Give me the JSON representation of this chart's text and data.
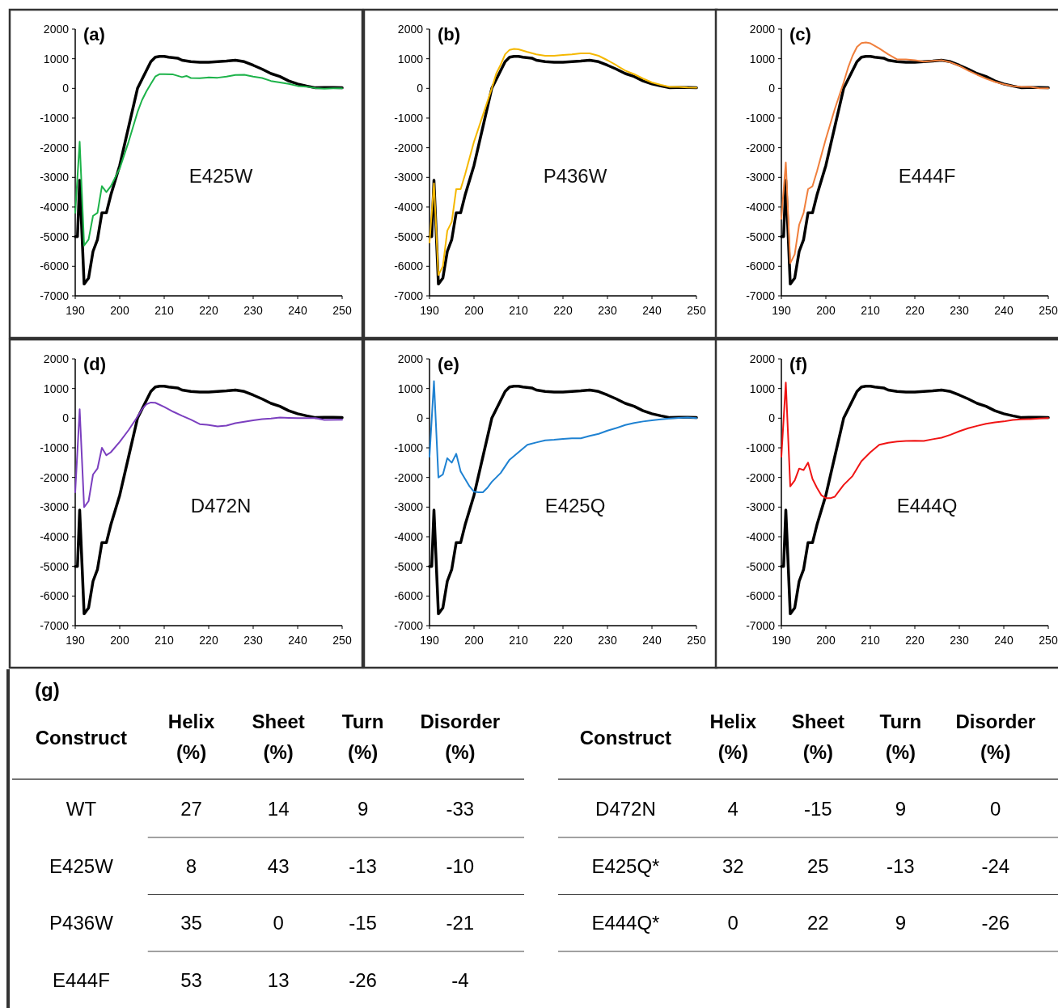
{
  "chart_data": [
    {
      "type": "line",
      "title": "(a)",
      "xlim": [
        190,
        250
      ],
      "ylim": [
        -7000,
        2000
      ],
      "xticks": [
        190,
        200,
        210,
        220,
        230,
        240,
        250
      ],
      "yticks": [
        2000,
        1000,
        0,
        -1000,
        -2000,
        -3000,
        -4000,
        -5000,
        -6000,
        -7000
      ],
      "series": [
        {
          "color": "#000000",
          "x": [
            190,
            190.5,
            191,
            192,
            193,
            194,
            195,
            196,
            197,
            198,
            200,
            202,
            204,
            205,
            206,
            207,
            208,
            209,
            210,
            211,
            213,
            214,
            216,
            218,
            220,
            222,
            224,
            226,
            228,
            230,
            232,
            234,
            236,
            238,
            240,
            242,
            244,
            246,
            248,
            250
          ],
          "values": [
            -5000,
            -5000,
            -3100,
            -6600,
            -6400,
            -5500,
            -5100,
            -4200,
            -4200,
            -3600,
            -2600,
            -1300,
            0,
            300,
            600,
            900,
            1050,
            1080,
            1080,
            1050,
            1020,
            950,
            900,
            880,
            880,
            900,
            920,
            950,
            900,
            780,
            650,
            500,
            400,
            250,
            150,
            80,
            20,
            30,
            30,
            20
          ]
        },
        {
          "name": "E425W",
          "color": "#1db34a",
          "x": [
            190,
            191,
            192,
            193,
            194,
            195,
            196,
            197,
            198,
            200,
            202,
            204,
            205,
            206,
            207,
            208,
            209,
            210,
            212,
            214,
            215,
            216,
            218,
            220,
            222,
            224,
            226,
            228,
            230,
            232,
            234,
            236,
            238,
            240,
            242,
            244,
            246,
            248,
            250
          ],
          "values": [
            -4200,
            -1800,
            -5300,
            -5100,
            -4300,
            -4200,
            -3300,
            -3500,
            -3300,
            -2700,
            -1800,
            -800,
            -400,
            -100,
            150,
            400,
            480,
            480,
            470,
            380,
            420,
            350,
            340,
            370,
            360,
            400,
            450,
            460,
            400,
            350,
            250,
            200,
            150,
            80,
            60,
            10,
            -10,
            0,
            0
          ]
        }
      ]
    },
    {
      "type": "line",
      "title": "(b)",
      "xlim": [
        190,
        250
      ],
      "ylim": [
        -7000,
        2000
      ],
      "xticks": [
        190,
        200,
        210,
        220,
        230,
        240,
        250
      ],
      "yticks": [
        2000,
        1000,
        0,
        -1000,
        -2000,
        -3000,
        -4000,
        -5000,
        -6000,
        -7000
      ],
      "series": [
        {
          "color": "#000000",
          "x": [
            190,
            190.5,
            191,
            192,
            193,
            194,
            195,
            196,
            197,
            198,
            200,
            202,
            204,
            205,
            206,
            207,
            208,
            209,
            210,
            211,
            213,
            214,
            216,
            218,
            220,
            222,
            224,
            226,
            228,
            230,
            232,
            234,
            236,
            238,
            240,
            242,
            244,
            246,
            248,
            250
          ],
          "values": [
            -5000,
            -5000,
            -3100,
            -6600,
            -6400,
            -5500,
            -5100,
            -4200,
            -4200,
            -3600,
            -2600,
            -1300,
            0,
            300,
            600,
            900,
            1050,
            1080,
            1080,
            1050,
            1020,
            950,
            900,
            880,
            880,
            900,
            920,
            950,
            900,
            780,
            650,
            500,
            400,
            250,
            150,
            80,
            20,
            30,
            30,
            20
          ]
        },
        {
          "name": "P436W",
          "color": "#f5b800",
          "x": [
            190,
            191,
            192,
            193,
            194,
            195,
            196,
            197,
            198,
            200,
            202,
            204,
            205,
            206,
            207,
            208,
            209,
            210,
            212,
            214,
            216,
            218,
            220,
            222,
            224,
            226,
            228,
            230,
            232,
            234,
            236,
            238,
            240,
            242,
            244,
            246,
            248,
            250
          ],
          "values": [
            -5200,
            -3200,
            -6300,
            -6000,
            -4800,
            -4500,
            -3400,
            -3400,
            -2900,
            -1800,
            -900,
            0,
            500,
            800,
            1150,
            1300,
            1330,
            1320,
            1230,
            1150,
            1100,
            1100,
            1130,
            1150,
            1180,
            1180,
            1100,
            950,
            780,
            600,
            480,
            330,
            200,
            120,
            50,
            50,
            30,
            20
          ]
        }
      ]
    },
    {
      "type": "line",
      "title": "(c)",
      "xlim": [
        190,
        250
      ],
      "ylim": [
        -7000,
        2000
      ],
      "xticks": [
        190,
        200,
        210,
        220,
        230,
        240,
        250
      ],
      "yticks": [
        2000,
        1000,
        0,
        -1000,
        -2000,
        -3000,
        -4000,
        -5000,
        -6000,
        -7000
      ],
      "series": [
        {
          "color": "#000000",
          "x": [
            190,
            190.5,
            191,
            192,
            193,
            194,
            195,
            196,
            197,
            198,
            200,
            202,
            204,
            205,
            206,
            207,
            208,
            209,
            210,
            211,
            213,
            214,
            216,
            218,
            220,
            222,
            224,
            226,
            228,
            230,
            232,
            234,
            236,
            238,
            240,
            242,
            244,
            246,
            248,
            250
          ],
          "values": [
            -5000,
            -5000,
            -3100,
            -6600,
            -6400,
            -5500,
            -5100,
            -4200,
            -4200,
            -3600,
            -2600,
            -1300,
            0,
            300,
            600,
            900,
            1050,
            1080,
            1080,
            1050,
            1020,
            950,
            900,
            880,
            880,
            900,
            920,
            950,
            900,
            780,
            650,
            500,
            400,
            250,
            150,
            80,
            20,
            30,
            30,
            20
          ]
        },
        {
          "name": "E444F",
          "color": "#f07f3c",
          "x": [
            190,
            191,
            192,
            193,
            194,
            195,
            196,
            197,
            198,
            200,
            202,
            204,
            205,
            206,
            207,
            208,
            209,
            210,
            212,
            214,
            216,
            218,
            220,
            222,
            224,
            226,
            228,
            230,
            232,
            234,
            236,
            238,
            240,
            242,
            244,
            246,
            248,
            250
          ],
          "values": [
            -4400,
            -2500,
            -5900,
            -5600,
            -4600,
            -4200,
            -3400,
            -3300,
            -2800,
            -1700,
            -700,
            200,
            700,
            1100,
            1400,
            1530,
            1550,
            1520,
            1350,
            1150,
            980,
            980,
            950,
            900,
            930,
            950,
            880,
            760,
            600,
            460,
            330,
            220,
            140,
            80,
            50,
            50,
            0,
            0
          ]
        }
      ]
    },
    {
      "type": "line",
      "title": "(d)",
      "xlim": [
        190,
        250
      ],
      "ylim": [
        -7000,
        2000
      ],
      "xticks": [
        190,
        200,
        210,
        220,
        230,
        240,
        250
      ],
      "yticks": [
        2000,
        1000,
        0,
        -1000,
        -2000,
        -3000,
        -4000,
        -5000,
        -6000,
        -7000
      ],
      "series": [
        {
          "color": "#000000",
          "x": [
            190,
            190.5,
            191,
            192,
            193,
            194,
            195,
            196,
            197,
            198,
            200,
            202,
            204,
            205,
            206,
            207,
            208,
            209,
            210,
            211,
            213,
            214,
            216,
            218,
            220,
            222,
            224,
            226,
            228,
            230,
            232,
            234,
            236,
            238,
            240,
            242,
            244,
            246,
            248,
            250
          ],
          "values": [
            -5000,
            -5000,
            -3100,
            -6600,
            -6400,
            -5500,
            -5100,
            -4200,
            -4200,
            -3600,
            -2600,
            -1300,
            0,
            300,
            600,
            900,
            1050,
            1080,
            1080,
            1050,
            1020,
            950,
            900,
            880,
            880,
            900,
            920,
            950,
            900,
            780,
            650,
            500,
            400,
            250,
            150,
            80,
            20,
            30,
            30,
            20
          ]
        },
        {
          "name": "D472N",
          "color": "#7b3fbf",
          "x": [
            190,
            191,
            192,
            193,
            194,
            195,
            196,
            197,
            198,
            200,
            202,
            204,
            205,
            206,
            207,
            208,
            210,
            212,
            214,
            216,
            218,
            220,
            222,
            224,
            226,
            228,
            230,
            232,
            234,
            236,
            238,
            240,
            244,
            246,
            250
          ],
          "values": [
            -2500,
            300,
            -3000,
            -2800,
            -1900,
            -1700,
            -1000,
            -1250,
            -1150,
            -800,
            -400,
            50,
            300,
            470,
            530,
            520,
            380,
            220,
            80,
            -50,
            -200,
            -230,
            -280,
            -250,
            -170,
            -120,
            -70,
            -30,
            -10,
            20,
            10,
            0,
            0,
            -60,
            -50
          ]
        }
      ]
    },
    {
      "type": "line",
      "title": "(e)",
      "xlim": [
        190,
        250
      ],
      "ylim": [
        -7000,
        2000
      ],
      "xticks": [
        190,
        200,
        210,
        220,
        230,
        240,
        250
      ],
      "yticks": [
        2000,
        1000,
        0,
        -1000,
        -2000,
        -3000,
        -4000,
        -5000,
        -6000,
        -7000
      ],
      "series": [
        {
          "color": "#000000",
          "x": [
            190,
            190.5,
            191,
            192,
            193,
            194,
            195,
            196,
            197,
            198,
            200,
            202,
            204,
            205,
            206,
            207,
            208,
            209,
            210,
            211,
            213,
            214,
            216,
            218,
            220,
            222,
            224,
            226,
            228,
            230,
            232,
            234,
            236,
            238,
            240,
            242,
            244,
            246,
            248,
            250
          ],
          "values": [
            -5000,
            -5000,
            -3100,
            -6600,
            -6400,
            -5500,
            -5100,
            -4200,
            -4200,
            -3600,
            -2600,
            -1300,
            0,
            300,
            600,
            900,
            1050,
            1080,
            1080,
            1050,
            1020,
            950,
            900,
            880,
            880,
            900,
            920,
            950,
            900,
            780,
            650,
            500,
            400,
            250,
            150,
            80,
            20,
            30,
            30,
            20
          ]
        },
        {
          "name": "E425Q",
          "color": "#1f82d2",
          "x": [
            190,
            191,
            192,
            193,
            194,
            195,
            196,
            197,
            198,
            199,
            200,
            201,
            202,
            203,
            204,
            206,
            208,
            210,
            212,
            214,
            216,
            218,
            220,
            222,
            224,
            226,
            228,
            230,
            232,
            234,
            236,
            238,
            240,
            242,
            244,
            246,
            248,
            250
          ],
          "values": [
            -1300,
            1250,
            -2000,
            -1900,
            -1350,
            -1500,
            -1200,
            -1800,
            -2050,
            -2300,
            -2480,
            -2500,
            -2500,
            -2350,
            -2150,
            -1850,
            -1400,
            -1150,
            -900,
            -820,
            -750,
            -730,
            -700,
            -680,
            -680,
            -600,
            -530,
            -420,
            -330,
            -230,
            -160,
            -110,
            -70,
            -40,
            -10,
            10,
            20,
            0
          ]
        }
      ]
    },
    {
      "type": "line",
      "title": "(f)",
      "xlim": [
        190,
        250
      ],
      "ylim": [
        -7000,
        2000
      ],
      "xticks": [
        190,
        200,
        210,
        220,
        230,
        240,
        250
      ],
      "yticks": [
        2000,
        1000,
        0,
        -1000,
        -2000,
        -3000,
        -4000,
        -5000,
        -6000,
        -7000
      ],
      "series": [
        {
          "color": "#000000",
          "x": [
            190,
            190.5,
            191,
            192,
            193,
            194,
            195,
            196,
            197,
            198,
            200,
            202,
            204,
            205,
            206,
            207,
            208,
            209,
            210,
            211,
            213,
            214,
            216,
            218,
            220,
            222,
            224,
            226,
            228,
            230,
            232,
            234,
            236,
            238,
            240,
            242,
            244,
            246,
            248,
            250
          ],
          "values": [
            -5000,
            -5000,
            -3100,
            -6600,
            -6400,
            -5500,
            -5100,
            -4200,
            -4200,
            -3600,
            -2600,
            -1300,
            0,
            300,
            600,
            900,
            1050,
            1080,
            1080,
            1050,
            1020,
            950,
            900,
            880,
            880,
            900,
            920,
            950,
            900,
            780,
            650,
            500,
            400,
            250,
            150,
            80,
            20,
            30,
            30,
            20
          ]
        },
        {
          "name": "E444Q",
          "color": "#f01414",
          "x": [
            190,
            191,
            192,
            193,
            194,
            195,
            196,
            197,
            198,
            199,
            200,
            201,
            202,
            203,
            204,
            206,
            208,
            210,
            212,
            214,
            216,
            218,
            220,
            222,
            224,
            226,
            228,
            230,
            232,
            234,
            236,
            238,
            240,
            242,
            244,
            246,
            248,
            250
          ],
          "values": [
            -1300,
            1200,
            -2300,
            -2100,
            -1700,
            -1750,
            -1500,
            -2050,
            -2350,
            -2600,
            -2700,
            -2700,
            -2650,
            -2450,
            -2250,
            -1950,
            -1450,
            -1150,
            -900,
            -830,
            -790,
            -770,
            -760,
            -770,
            -710,
            -660,
            -560,
            -440,
            -340,
            -260,
            -190,
            -140,
            -110,
            -60,
            -40,
            -30,
            -10,
            0
          ]
        }
      ]
    },
    {
      "type": "other",
      "title": "(g)",
      "categories": [
        "Construct",
        "Helix (%)",
        "Sheet (%)",
        "Turn (%)",
        "Disorder (%)"
      ],
      "cell_labels": [
        [
          "WT",
          "27",
          "14",
          "9",
          "-33"
        ],
        [
          "E425W",
          "8",
          "43",
          "-13",
          "-10"
        ],
        [
          "P436W",
          "35",
          "0",
          "-15",
          "-21"
        ],
        [
          "E444F",
          "53",
          "13",
          "-26",
          "-4"
        ]
      ]
    },
    {
      "type": "other",
      "categories": [
        "Construct",
        "Helix (%)",
        "Sheet (%)",
        "Turn (%)",
        "Disorder (%)"
      ],
      "cell_labels": [
        [
          "D472N",
          "4",
          "-15",
          "9",
          "0"
        ],
        [
          "E425Q*",
          "32",
          "25",
          "-13",
          "-24"
        ],
        [
          "E444Q*",
          "0",
          "22",
          "9",
          "-26"
        ]
      ]
    }
  ]
}
